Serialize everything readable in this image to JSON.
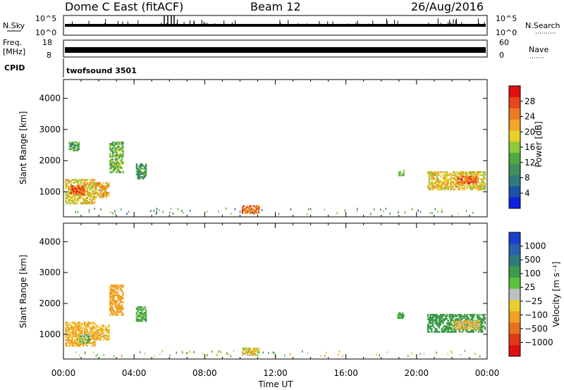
{
  "header": {
    "station": "Dome C East (fitACF)",
    "beam": "Beam 12",
    "date": "26/Aug/2016"
  },
  "noise_panel": {
    "left_label": "N.Sky",
    "right_label": "N.Search",
    "left_ticks": [
      "10^5",
      "10^0"
    ],
    "right_ticks": [
      "10^5",
      "10^0"
    ]
  },
  "freq_panel": {
    "left_label_line1": "Freq.",
    "left_label_line2": "[MHz]",
    "right_label": "Nave",
    "left_ticks": [
      "18",
      "8"
    ],
    "right_ticks": [
      "60",
      "0"
    ]
  },
  "cpid": {
    "label": "CPID",
    "value": "twofsound 3501"
  },
  "colors": {
    "power_scale": [
      "#1020e0",
      "#1f4fa8",
      "#2f7a7a",
      "#3e8f5c",
      "#4fa843",
      "#8ec93a",
      "#e6d02a",
      "#f2a526",
      "#f07a22",
      "#e8451e",
      "#e01010"
    ],
    "velocity_scale": [
      "#1a3fd0",
      "#2a60b0",
      "#2f7a7a",
      "#3e9a4a",
      "#5fc040",
      "#c0c0c0",
      "#e8d030",
      "#f0a020",
      "#e87020",
      "#e03818",
      "#e01010"
    ]
  },
  "chart_data": [
    {
      "type": "heatmap",
      "name": "power",
      "xlabel": "",
      "ylabel": "Slant Range [km]",
      "ylim": [
        200,
        4600
      ],
      "xlim": [
        0,
        24
      ],
      "y_ticks": [
        "1000",
        "2000",
        "3000",
        "4000"
      ],
      "colorbar": {
        "label": "Power [dB]",
        "ticks": [
          "4",
          "8",
          "12",
          "16",
          "20",
          "24",
          "28"
        ],
        "range": [
          0,
          32
        ]
      },
      "echo_regions": [
        {
          "t0": 0.1,
          "t1": 1.8,
          "r0": 600,
          "r1": 1400,
          "value": 20
        },
        {
          "t0": 0.4,
          "t1": 1.2,
          "r0": 900,
          "r1": 1200,
          "value": 28
        },
        {
          "t0": 0.3,
          "t1": 0.9,
          "r0": 2300,
          "r1": 2600,
          "value": 12
        },
        {
          "t0": 1.8,
          "t1": 2.6,
          "r0": 800,
          "r1": 1300,
          "value": 22
        },
        {
          "t0": 2.6,
          "t1": 3.4,
          "r0": 1600,
          "r1": 2600,
          "value": 14
        },
        {
          "t0": 4.1,
          "t1": 4.7,
          "r0": 1400,
          "r1": 1900,
          "value": 10
        },
        {
          "t0": 10.1,
          "t1": 11.1,
          "r0": 300,
          "r1": 560,
          "value": 26
        },
        {
          "t0": 18.9,
          "t1": 19.3,
          "r0": 1500,
          "r1": 1700,
          "value": 12
        },
        {
          "t0": 20.6,
          "t1": 23.9,
          "r0": 1050,
          "r1": 1650,
          "value": 20
        },
        {
          "t0": 22.3,
          "t1": 23.4,
          "r0": 1250,
          "r1": 1500,
          "value": 26
        }
      ]
    },
    {
      "type": "heatmap",
      "name": "velocity",
      "xlabel": "Time UT",
      "ylabel": "Slant Range [km]",
      "ylim": [
        200,
        4600
      ],
      "xlim": [
        0,
        24
      ],
      "y_ticks": [
        "1000",
        "2000",
        "3000",
        "4000"
      ],
      "x_ticks": [
        "00:00",
        "04:00",
        "08:00",
        "12:00",
        "16:00",
        "20:00",
        "00:00"
      ],
      "colorbar": {
        "label": "Velocity [m s⁻¹]",
        "ticks": [
          "1000",
          "500",
          "100",
          "25",
          "−25",
          "−100",
          "−500",
          "−1000"
        ]
      },
      "echo_regions": [
        {
          "t0": 0.1,
          "t1": 1.8,
          "r0": 600,
          "r1": 1400,
          "value": -150
        },
        {
          "t0": 0.9,
          "t1": 1.5,
          "r0": 700,
          "r1": 1000,
          "value": 80
        },
        {
          "t0": 1.8,
          "t1": 2.6,
          "r0": 800,
          "r1": 1300,
          "value": -120
        },
        {
          "t0": 2.6,
          "t1": 3.4,
          "r0": 1600,
          "r1": 2600,
          "value": -300
        },
        {
          "t0": 4.1,
          "t1": 4.7,
          "r0": 1400,
          "r1": 1900,
          "value": 120
        },
        {
          "t0": 10.1,
          "t1": 11.1,
          "r0": 300,
          "r1": 560,
          "value": -60
        },
        {
          "t0": 18.9,
          "t1": 19.3,
          "r0": 1500,
          "r1": 1700,
          "value": 150
        },
        {
          "t0": 20.6,
          "t1": 23.9,
          "r0": 1050,
          "r1": 1650,
          "value": 300
        },
        {
          "t0": 22.0,
          "t1": 23.6,
          "r0": 1150,
          "r1": 1450,
          "value": -80
        }
      ]
    }
  ]
}
